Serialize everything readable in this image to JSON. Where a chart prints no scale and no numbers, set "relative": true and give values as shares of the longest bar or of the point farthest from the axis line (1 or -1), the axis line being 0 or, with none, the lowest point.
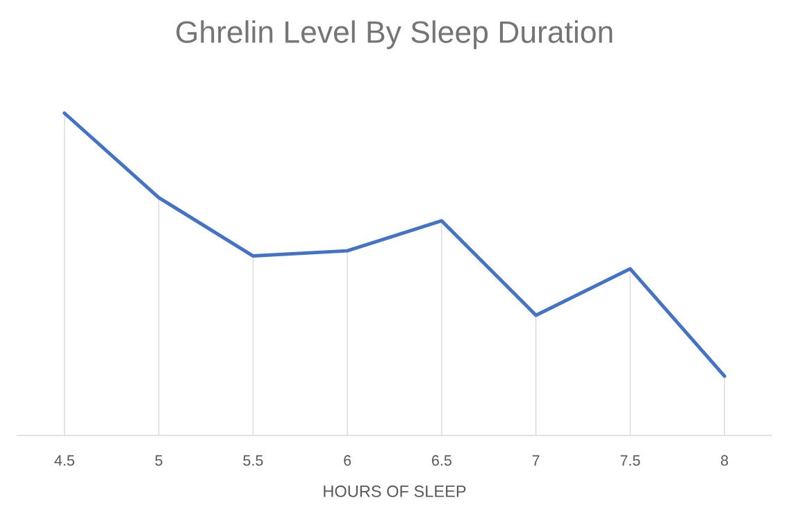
{
  "chart_data": {
    "type": "line",
    "title": "Ghrelin Level By Sleep Duration",
    "xlabel": "HOURS OF SLEEP",
    "categories": [
      "4.5",
      "5",
      "5.5",
      "6",
      "6.5",
      "7",
      "7.5",
      "8"
    ],
    "series": [
      {
        "color": "#4472c4",
        "values": [
          1,
          0.738,
          0.557,
          0.573,
          0.666,
          0.373,
          0.517,
          0.184
        ]
      }
    ],
    "relative": true,
    "grid": "x",
    "legend": false,
    "marker": "none",
    "line_style": "solid"
  }
}
